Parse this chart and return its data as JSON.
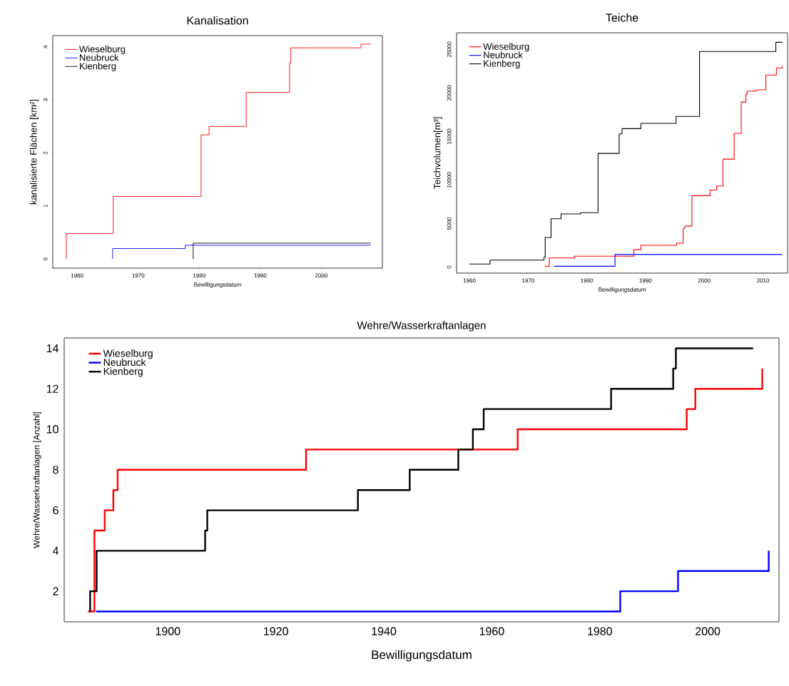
{
  "chart_data": [
    {
      "type": "step",
      "title": "Kanalisation",
      "xlabel": "Bewilligungsdatum",
      "ylabel": "kanalisierte Flächen [km²]",
      "xlim": [
        1956,
        2010
      ],
      "ylim": [
        -0.17,
        4.21
      ],
      "xticks": [
        1960,
        1970,
        1980,
        1990,
        2000
      ],
      "yticks": [
        0,
        1,
        2,
        3,
        4
      ],
      "legend": "top left",
      "series": [
        {
          "name": "Wieselburg",
          "color": "#ff0000",
          "x": [
            1958.2,
            1958.2,
            1965.9,
            1980.3,
            1981.6,
            1987.7,
            1994.8,
            1995.0,
            2006.5,
            2008.1
          ],
          "values": [
            0,
            0.48,
            1.18,
            2.34,
            2.5,
            3.14,
            3.7,
            3.98,
            4.05,
            4.05
          ]
        },
        {
          "name": "Neubruck",
          "color": "#0000ff",
          "x": [
            1965.8,
            1965.8,
            1977.7,
            2008.1
          ],
          "values": [
            0,
            0.2,
            0.26,
            0.26
          ]
        },
        {
          "name": "Kienberg",
          "color": "#000000",
          "x": [
            1979.0,
            1979.0,
            2008.1
          ],
          "values": [
            0,
            0.3,
            0.3
          ]
        }
      ]
    },
    {
      "type": "step",
      "title": "Teiche",
      "xlabel": "Bewilligungsdatum",
      "ylabel": "Teichvolumen[m³]",
      "xlim": [
        1957.8,
        2014.2
      ],
      "ylim": [
        -690,
        26900
      ],
      "xticks": [
        1960,
        1970,
        1980,
        1990,
        2000,
        2010
      ],
      "yticks": [
        0,
        5000,
        10000,
        15000,
        20000,
        25000
      ],
      "legend": "top left",
      "series": [
        {
          "name": "Wieselburg",
          "color": "#ff0000",
          "x": [
            1972.9,
            1973.6,
            1977.9,
            1988.0,
            1989.2,
            1995.3,
            1996.4,
            1996.7,
            1997.9,
            2001.0,
            2002.1,
            2003.2,
            2005.1,
            2006.3,
            2007.1,
            2007.3,
            2008.9,
            2010.5,
            2012.3,
            2013.3
          ],
          "values": [
            100,
            1050,
            1250,
            2000,
            2500,
            2750,
            4450,
            4700,
            8200,
            8850,
            9300,
            12400,
            15350,
            18950,
            19850,
            20200,
            20350,
            22050,
            22850,
            23100
          ]
        },
        {
          "name": "Neubruck",
          "color": "#0000ff",
          "x": [
            1974.4,
            1984.8,
            2013.3
          ],
          "values": [
            100,
            1450,
            1450
          ]
        },
        {
          "name": "Kienberg",
          "color": "#000000",
          "x": [
            1960.0,
            1963.5,
            1972.7,
            1972.9,
            1973.9,
            1975.6,
            1978.9,
            1981.9,
            1985.5,
            1986.0,
            1989.2,
            1995.2,
            1999.2,
            2012.2,
            2013.3
          ],
          "values": [
            350,
            800,
            1150,
            3400,
            5550,
            6100,
            6250,
            13050,
            15300,
            15900,
            16500,
            17300,
            24750,
            25800,
            25800
          ]
        }
      ]
    },
    {
      "type": "step",
      "title": "Wehre/Wasserkraftanlagen",
      "xlabel": "Bewilligungsdatum",
      "ylabel": "Wehre/Wasserkraftanlagen [Anzahl]",
      "xlim": [
        1880.8,
        2013.2
      ],
      "ylim": [
        0.49,
        14.51
      ],
      "xticks": [
        1900,
        1920,
        1940,
        1960,
        1980,
        2000
      ],
      "yticks": [
        2,
        4,
        6,
        8,
        10,
        12,
        14
      ],
      "legend": "top left",
      "series": [
        {
          "name": "Wieselburg",
          "color": "#ff0000",
          "x": [
            1885.2,
            1886.4,
            1888.3,
            1889.9,
            1890.7,
            1925.6,
            1964.8,
            1996.1,
            1997.7,
            2010.1
          ],
          "values": [
            1,
            5,
            6,
            7,
            8,
            9,
            10,
            11,
            12,
            13
          ]
        },
        {
          "name": "Neubruck",
          "color": "#0000ff",
          "x": [
            1886.7,
            1983.8,
            1994.5,
            2011.3
          ],
          "values": [
            1,
            2,
            3,
            4
          ]
        },
        {
          "name": "Kienberg",
          "color": "#000000",
          "x": [
            1885.6,
            1885.6,
            1886.8,
            1906.9,
            1907.3,
            1935.2,
            1944.8,
            1953.8,
            1956.5,
            1958.5,
            1982.1,
            1993.6,
            1994.1,
            2008.4
          ],
          "values": [
            1,
            2,
            4,
            5,
            6,
            7,
            8,
            9,
            10,
            11,
            12,
            13,
            14,
            14
          ]
        }
      ]
    }
  ]
}
